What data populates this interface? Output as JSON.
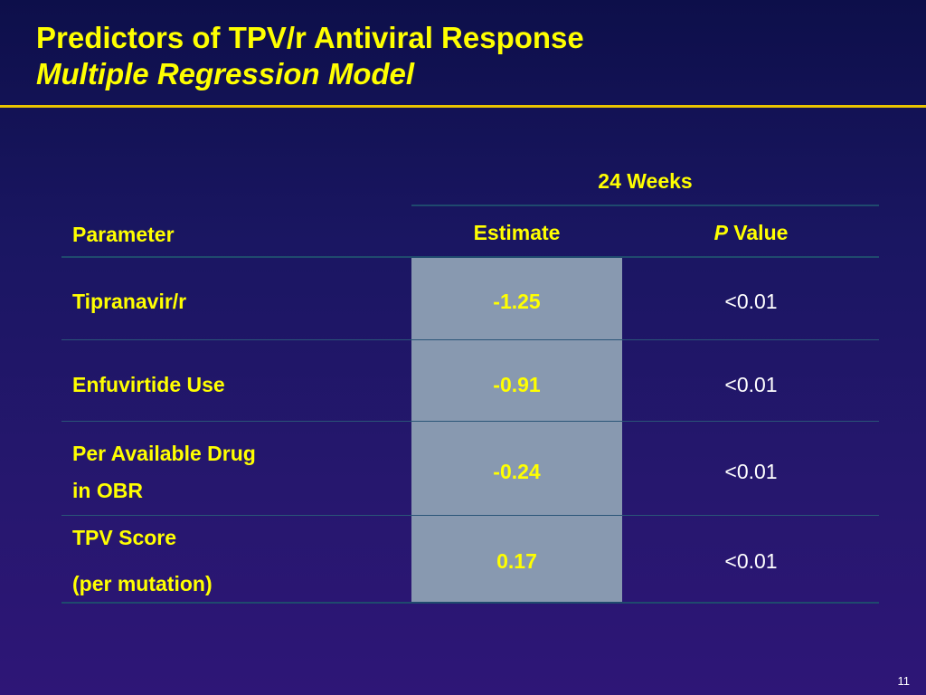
{
  "title": {
    "line1": "Predictors of TPV/r Antiviral Response",
    "line2": "Multiple Regression Model"
  },
  "table": {
    "group_header": "24 Weeks",
    "columns": {
      "parameter": "Parameter",
      "estimate": "Estimate",
      "p_italic": "P",
      "p_rest": " Value"
    },
    "rows": [
      {
        "parameter_line1": "Tipranavir/r",
        "parameter_line2": "",
        "estimate": "-1.25",
        "p_value": "<0.01"
      },
      {
        "parameter_line1": "Enfuvirtide Use",
        "parameter_line2": "",
        "estimate": "-0.91",
        "p_value": "<0.01"
      },
      {
        "parameter_line1": "Per Available Drug",
        "parameter_line2": "in OBR",
        "estimate": "-0.24",
        "p_value": "<0.01"
      },
      {
        "parameter_line1": "TPV Score",
        "parameter_line2": "(per mutation)",
        "estimate": "0.17",
        "p_value": "<0.01"
      }
    ]
  },
  "page_number": "11",
  "colors": {
    "title": "#ffff00",
    "rule": "#e8c400",
    "estimate_fill": "#8899b0",
    "background_top": "#0d0f4a",
    "background_bottom": "#2e1677"
  }
}
